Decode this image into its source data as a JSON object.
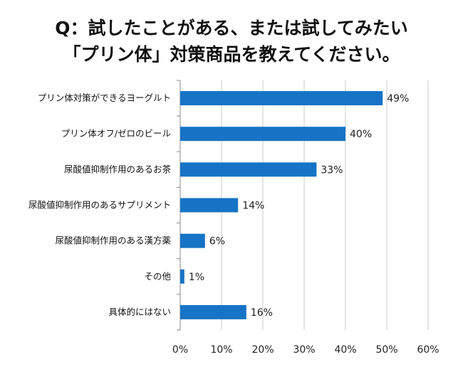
{
  "title_line1": "Q：試したことがある、または試してみたい",
  "title_line2": "「プリン体」対策商品を教えてください。",
  "chart_data": {
    "type": "bar",
    "orientation": "horizontal",
    "categories": [
      "プリン体対策ができるヨーグルト",
      "プリン体オフ/ゼロのビール",
      "尿酸値抑制作用のあるお茶",
      "尿酸値抑制作用のあるサプリメント",
      "尿酸値抑制作用のある漢方薬",
      "その他",
      "具体的にはない"
    ],
    "values": [
      49,
      40,
      33,
      14,
      6,
      1,
      16
    ],
    "value_labels": [
      "49%",
      "40%",
      "33%",
      "14%",
      "6%",
      "1%",
      "16%"
    ],
    "xlim": [
      0,
      60
    ],
    "x_ticks": [
      "0%",
      "10%",
      "20%",
      "30%",
      "40%",
      "50%",
      "60%"
    ],
    "grid": true,
    "bar_color": "#1673c5",
    "grid_color": "#c8c8c8"
  }
}
